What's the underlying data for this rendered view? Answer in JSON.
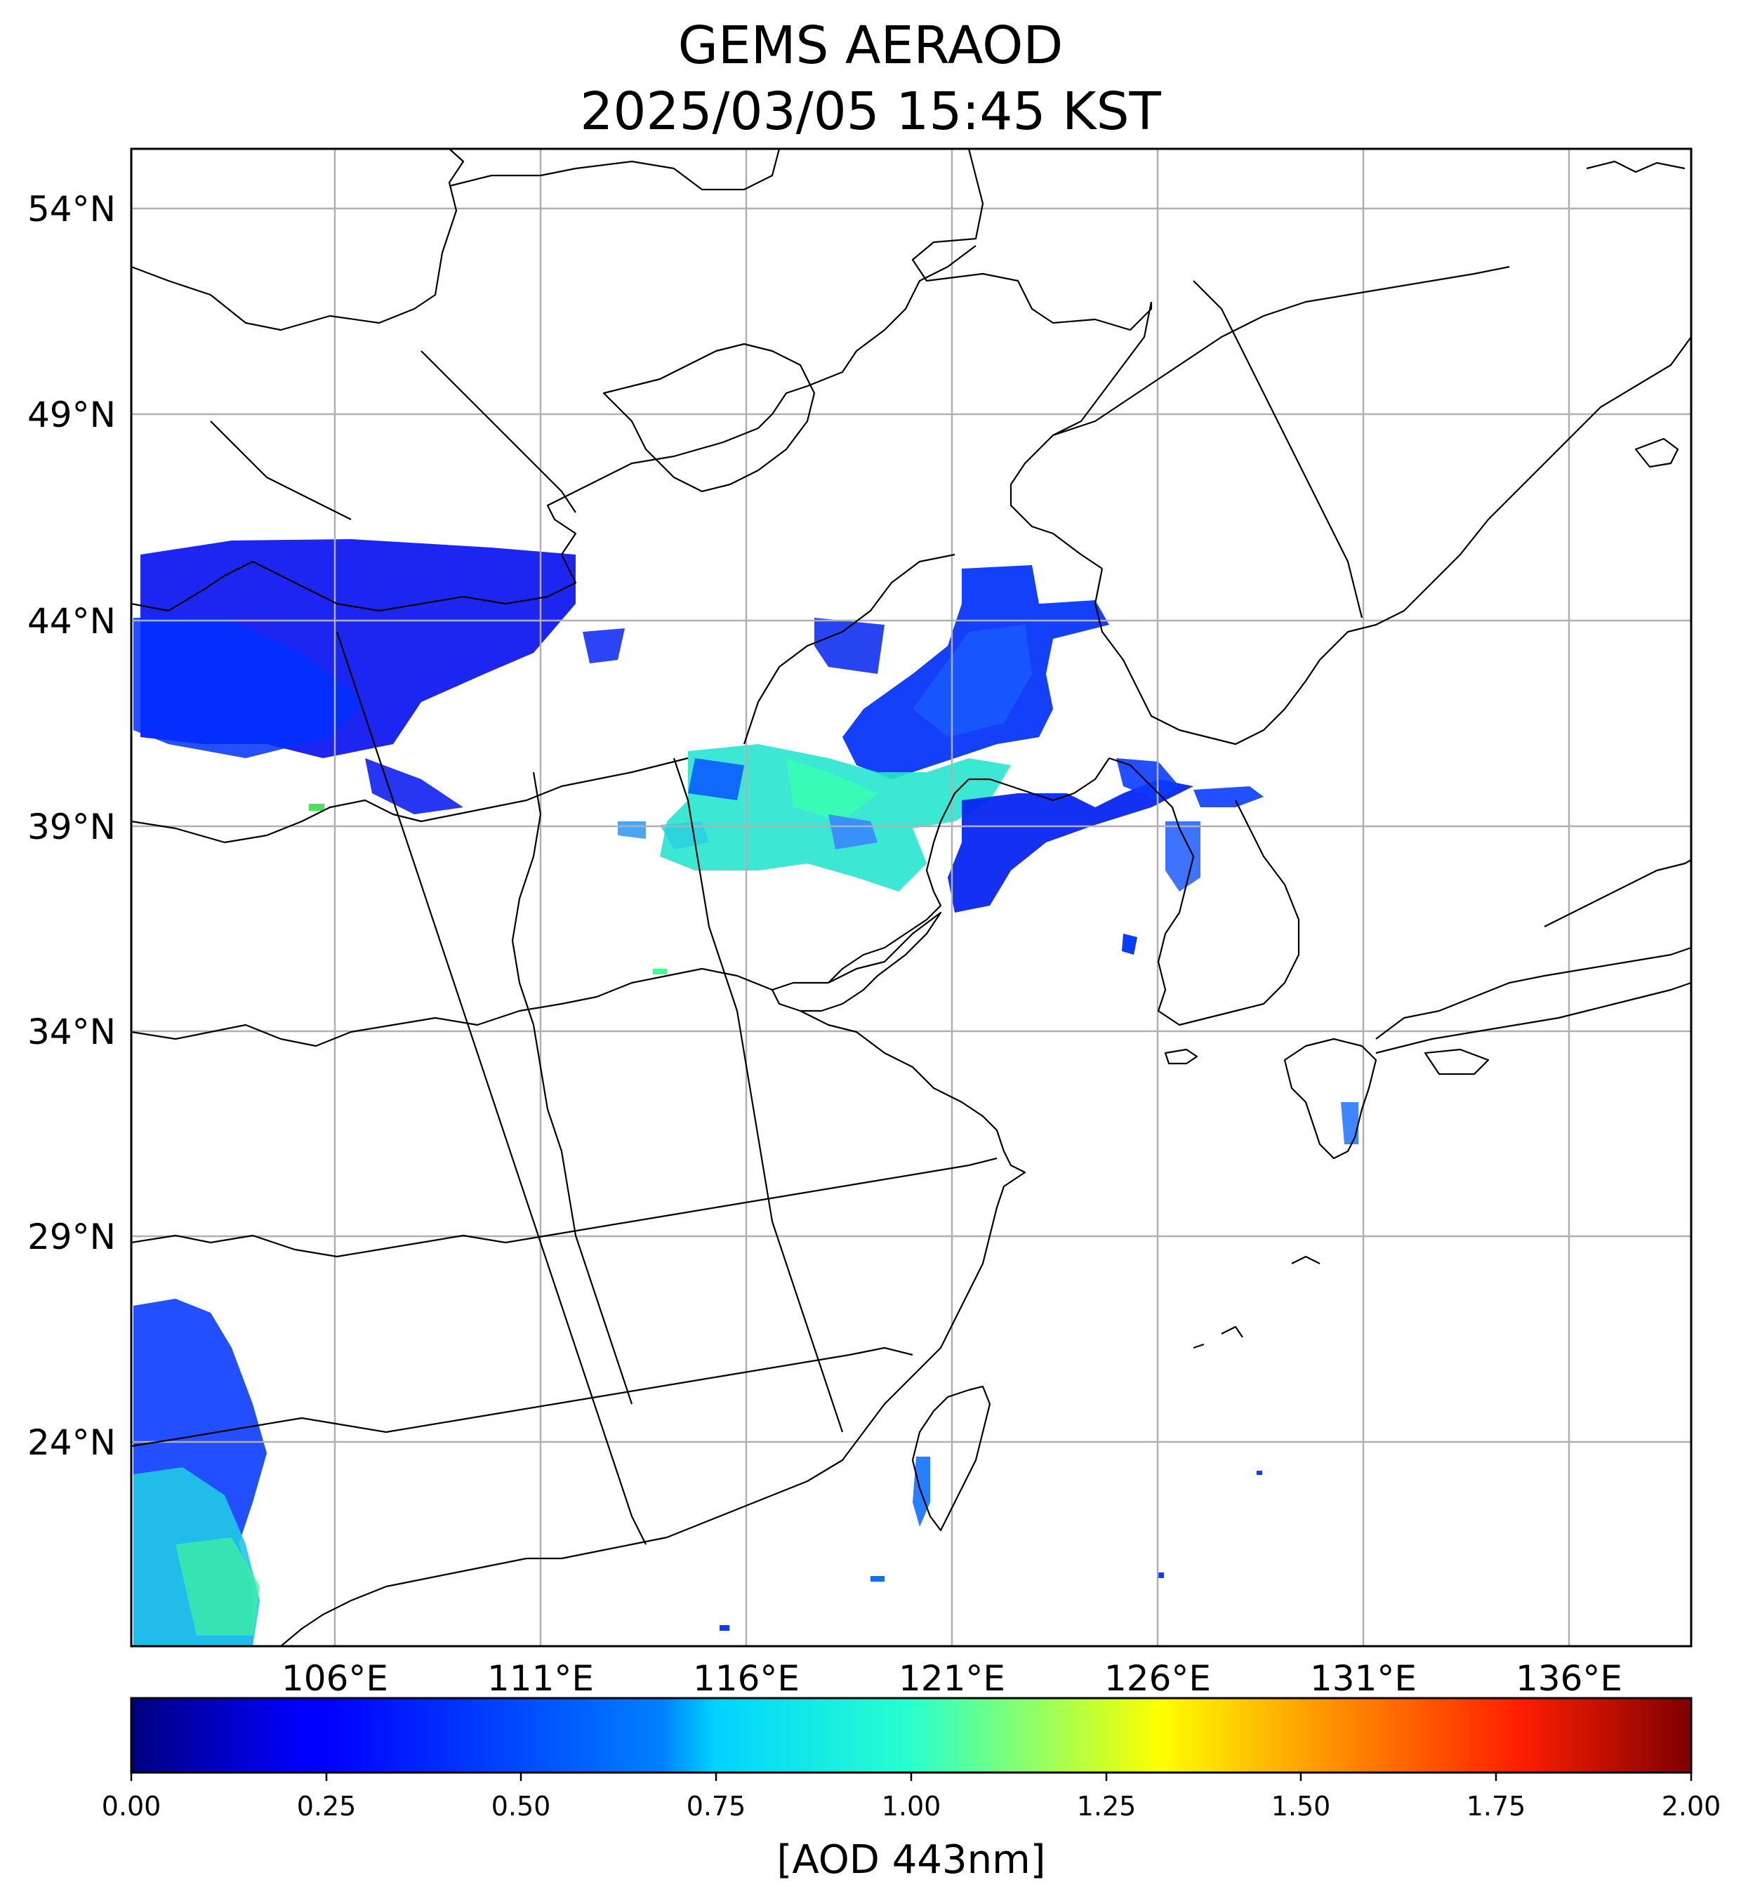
{
  "title_line1": "GEMS AERAOD",
  "title_line2": "2025/03/05 15:45 KST",
  "lat_ticks": [
    "54°N",
    "49°N",
    "44°N",
    "39°N",
    "34°N",
    "29°N",
    "24°N"
  ],
  "lon_ticks": [
    "106°E",
    "111°E",
    "116°E",
    "121°E",
    "126°E",
    "131°E",
    "136°E"
  ],
  "colorbar": {
    "label": "[AOD 443nm]",
    "ticks": [
      "0.00",
      "0.25",
      "0.50",
      "0.75",
      "1.00",
      "1.25",
      "1.50",
      "1.75",
      "2.00"
    ],
    "colormap": "jet",
    "range": [
      0,
      2
    ]
  },
  "colors": {
    "frame": "#000000",
    "grid": "#b0b0b0",
    "coast": "#000000"
  }
}
